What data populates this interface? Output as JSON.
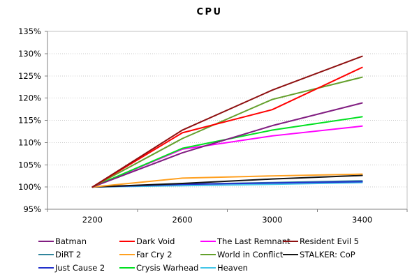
{
  "chart_data": {
    "type": "line",
    "title": "CPU",
    "categories": [
      "2200",
      "2600",
      "3000",
      "3400"
    ],
    "xlabel": "",
    "ylabel": "",
    "ylim": [
      95,
      135
    ],
    "ytick_step": 5,
    "ytick_labels": [
      "95%",
      "100%",
      "105%",
      "110%",
      "115%",
      "120%",
      "125%",
      "130%",
      "135%"
    ],
    "grid": "horizontal dotted lines at each 5% step",
    "legend_position": "bottom, 3 rows x 4 columns",
    "series": [
      {
        "name": "Batman",
        "color": "#811D81",
        "values": [
          100,
          107.7,
          113.8,
          118.9
        ]
      },
      {
        "name": "Dark Void",
        "color": "#FF0000",
        "values": [
          100,
          112.2,
          117.4,
          126.9
        ]
      },
      {
        "name": "The Last Remnant",
        "color": "#FF00FF",
        "values": [
          100,
          108.5,
          111.5,
          113.7
        ]
      },
      {
        "name": "Resident Evil 5",
        "color": "#8E1010",
        "values": [
          100,
          112.8,
          121.8,
          129.4
        ]
      },
      {
        "name": "DiRT 2",
        "color": "#31859C",
        "values": [
          100,
          100.6,
          101.0,
          101.4
        ]
      },
      {
        "name": "Far Cry 2",
        "color": "#FFA020",
        "values": [
          100,
          102.0,
          102.5,
          102.9
        ]
      },
      {
        "name": "World in Conflict",
        "color": "#64A02C",
        "values": [
          100,
          110.9,
          119.7,
          124.7
        ]
      },
      {
        "name": "STALKER: CoP",
        "color": "#141414",
        "values": [
          100,
          100.8,
          101.8,
          102.6
        ]
      },
      {
        "name": "Just Cause 2",
        "color": "#2232CC",
        "values": [
          100,
          100.6,
          100.9,
          101.2
        ]
      },
      {
        "name": "Crysis Warhead",
        "color": "#00E020",
        "values": [
          100,
          108.7,
          112.8,
          115.8
        ]
      },
      {
        "name": "Heaven",
        "color": "#44C6E8",
        "values": [
          100,
          100.3,
          100.6,
          101.0
        ]
      }
    ],
    "draw_order": [
      "Heaven",
      "DiRT 2",
      "Just Cause 2",
      "STALKER: CoP",
      "Far Cry 2",
      "The Last Remnant",
      "Crysis Warhead",
      "Batman",
      "World in Conflict",
      "Dark Void",
      "Resident Evil 5"
    ],
    "colors": {
      "axis": "#808080",
      "grid": "#C9C9C9",
      "plot_border": "#C0C0C0",
      "background": "#FFFFFF",
      "text": "#000000"
    }
  }
}
